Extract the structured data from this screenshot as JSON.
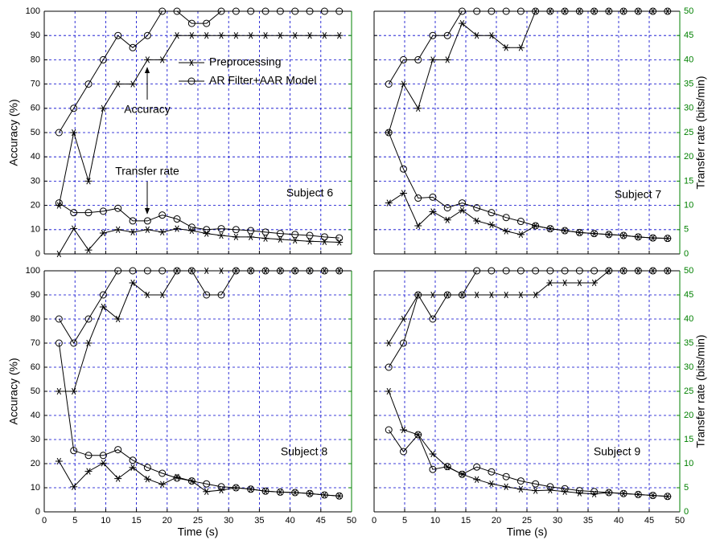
{
  "chart_data": [
    {
      "type": "line",
      "ylabel": "Accuracy (%)",
      "annotations": [
        "Accuracy",
        "Transfer rate",
        "Subject 6"
      ],
      "x": [
        2.4,
        4.8,
        7.2,
        9.6,
        12,
        14.4,
        16.8,
        19.2,
        21.6,
        24,
        26.4,
        28.8,
        31.2,
        33.6,
        36,
        38.4,
        40.8,
        43.2,
        45.6,
        48
      ],
      "xlim": [
        0,
        50
      ],
      "xticks": [
        0,
        5,
        10,
        15,
        20,
        25,
        30,
        35,
        40,
        45,
        50
      ],
      "xtick_labels": false,
      "ylim": [
        0,
        100
      ],
      "yticks": [
        0,
        10,
        20,
        30,
        40,
        50,
        60,
        70,
        80,
        90,
        100
      ],
      "ytick_labels": true,
      "y2lim": [
        0,
        50
      ],
      "y2ticks": [
        0,
        5,
        10,
        15,
        20,
        25,
        30,
        35,
        40,
        45,
        50
      ],
      "y2tick_labels": false,
      "grid": true,
      "grid_color": "#0000cc",
      "y2color": "#008000",
      "series": [
        {
          "name": "Preprocessing",
          "color": "#000000",
          "marker": "star",
          "values": [
            20,
            50,
            30,
            60,
            70,
            70,
            80,
            80,
            90,
            90,
            90,
            90,
            90,
            90,
            90,
            90,
            90,
            90,
            90,
            90
          ]
        },
        {
          "name": "AR Filter+AAR Model",
          "color": "#000000",
          "marker": "circle",
          "values": [
            50,
            60,
            70,
            80,
            90,
            85,
            90,
            100,
            100,
            95,
            95,
            100,
            100,
            100,
            100,
            100,
            100,
            100,
            100,
            100
          ]
        },
        {
          "color": "#000000",
          "marker": "star",
          "axis": "y2",
          "values": [
            0,
            5.2,
            0.8,
            4.3,
            5,
            4.5,
            5,
            4.5,
            5.2,
            4.8,
            4.2,
            3.8,
            3.5,
            3.5,
            3.2,
            3,
            2.8,
            2.6,
            2.5,
            2.4
          ]
        },
        {
          "color": "#000000",
          "marker": "circle",
          "axis": "y2",
          "values": [
            10.5,
            8.5,
            8.5,
            8.8,
            9.4,
            6.8,
            6.8,
            8,
            7.2,
            5.5,
            5,
            5.2,
            5,
            4.8,
            4.5,
            4.2,
            4,
            3.8,
            3.5,
            3.3
          ]
        }
      ]
    },
    {
      "type": "line",
      "y2label": "Transfer rate (bits/min)",
      "annotations": [
        "Subject 7"
      ],
      "x": [
        2.4,
        4.8,
        7.2,
        9.6,
        12,
        14.4,
        16.8,
        19.2,
        21.6,
        24,
        26.4,
        28.8,
        31.2,
        33.6,
        36,
        38.4,
        40.8,
        43.2,
        45.6,
        48
      ],
      "xlim": [
        0,
        50
      ],
      "xticks": [
        0,
        5,
        10,
        15,
        20,
        25,
        30,
        35,
        40,
        45,
        50
      ],
      "xtick_labels": false,
      "ylim": [
        0,
        100
      ],
      "yticks": [
        0,
        10,
        20,
        30,
        40,
        50,
        60,
        70,
        80,
        90,
        100
      ],
      "ytick_labels": false,
      "y2lim": [
        0,
        50
      ],
      "y2ticks": [
        0,
        5,
        10,
        15,
        20,
        25,
        30,
        35,
        40,
        45,
        50
      ],
      "y2tick_labels": true,
      "grid": true,
      "grid_color": "#0000cc",
      "y2color": "#008000",
      "series": [
        {
          "color": "#000000",
          "marker": "star",
          "values": [
            50,
            70,
            60,
            80,
            80,
            95,
            90,
            90,
            85,
            85,
            100,
            100,
            100,
            100,
            100,
            100,
            100,
            100,
            100,
            100
          ]
        },
        {
          "color": "#000000",
          "marker": "circle",
          "values": [
            70,
            80,
            80,
            90,
            90,
            100,
            100,
            100,
            100,
            100,
            100,
            100,
            100,
            100,
            100,
            100,
            100,
            100,
            100,
            100
          ]
        },
        {
          "color": "#000000",
          "marker": "star",
          "axis": "y2",
          "values": [
            10.5,
            12.5,
            5.8,
            8.7,
            7,
            9,
            6.8,
            6,
            4.7,
            4,
            5.8,
            5.2,
            4.8,
            4.4,
            4.2,
            4,
            3.8,
            3.5,
            3.3,
            3.2
          ]
        },
        {
          "color": "#000000",
          "marker": "circle",
          "axis": "y2",
          "values": [
            25,
            17.5,
            11.5,
            11.7,
            9.5,
            10.5,
            9.5,
            8.5,
            7.5,
            6.7,
            5.8,
            5.2,
            4.8,
            4.4,
            4.2,
            4,
            3.8,
            3.5,
            3.3,
            3.2
          ]
        }
      ]
    },
    {
      "type": "line",
      "ylabel": "Accuracy (%)",
      "xlabel": "Time (s)",
      "annotations": [
        "Subject 8"
      ],
      "x": [
        2.4,
        4.8,
        7.2,
        9.6,
        12,
        14.4,
        16.8,
        19.2,
        21.6,
        24,
        26.4,
        28.8,
        31.2,
        33.6,
        36,
        38.4,
        40.8,
        43.2,
        45.6,
        48
      ],
      "xlim": [
        0,
        50
      ],
      "xticks": [
        0,
        5,
        10,
        15,
        20,
        25,
        30,
        35,
        40,
        45,
        50
      ],
      "xtick_labels": true,
      "ylim": [
        0,
        100
      ],
      "yticks": [
        0,
        10,
        20,
        30,
        40,
        50,
        60,
        70,
        80,
        90,
        100
      ],
      "ytick_labels": true,
      "y2lim": [
        0,
        50
      ],
      "y2ticks": [
        0,
        5,
        10,
        15,
        20,
        25,
        30,
        35,
        40,
        45,
        50
      ],
      "y2tick_labels": false,
      "grid": true,
      "grid_color": "#0000cc",
      "y2color": "#008000",
      "series": [
        {
          "color": "#000000",
          "marker": "star",
          "values": [
            50,
            50,
            70,
            85,
            80,
            95,
            90,
            90,
            100,
            100,
            100,
            100,
            100,
            100,
            100,
            100,
            100,
            100,
            100,
            100
          ]
        },
        {
          "color": "#000000",
          "marker": "circle",
          "values": [
            80,
            70,
            80,
            90,
            100,
            100,
            100,
            100,
            100,
            100,
            90,
            90,
            100,
            100,
            100,
            100,
            100,
            100,
            100,
            100
          ]
        },
        {
          "color": "#000000",
          "marker": "star",
          "axis": "y2",
          "values": [
            10.5,
            5.2,
            8.4,
            10.1,
            6.9,
            9.2,
            6.8,
            5.7,
            7.2,
            6.4,
            4.2,
            4.5,
            5,
            4.7,
            4.3,
            4.1,
            4,
            3.8,
            3.5,
            3.3
          ]
        },
        {
          "color": "#000000",
          "marker": "circle",
          "axis": "y2",
          "values": [
            35,
            12.7,
            11.7,
            11.7,
            12.9,
            10.7,
            9.2,
            8,
            7,
            6.4,
            5.8,
            5.2,
            5,
            4.7,
            4.3,
            4.1,
            4,
            3.8,
            3.5,
            3.3
          ]
        }
      ]
    },
    {
      "type": "line",
      "y2label": "Transfer rate (bits/min)",
      "xlabel": "Time (s)",
      "annotations": [
        "Subject 9"
      ],
      "x": [
        2.4,
        4.8,
        7.2,
        9.6,
        12,
        14.4,
        16.8,
        19.2,
        21.6,
        24,
        26.4,
        28.8,
        31.2,
        33.6,
        36,
        38.4,
        40.8,
        43.2,
        45.6,
        48
      ],
      "xlim": [
        0,
        50
      ],
      "xticks": [
        0,
        5,
        10,
        15,
        20,
        25,
        30,
        35,
        40,
        45,
        50
      ],
      "xtick_labels": true,
      "ylim": [
        0,
        100
      ],
      "yticks": [
        0,
        10,
        20,
        30,
        40,
        50,
        60,
        70,
        80,
        90,
        100
      ],
      "ytick_labels": false,
      "y2lim": [
        0,
        50
      ],
      "y2ticks": [
        0,
        5,
        10,
        15,
        20,
        25,
        30,
        35,
        40,
        45,
        50
      ],
      "y2tick_labels": true,
      "grid": true,
      "grid_color": "#0000cc",
      "y2color": "#008000",
      "series": [
        {
          "color": "#000000",
          "marker": "star",
          "values": [
            70,
            80,
            90,
            90,
            90,
            90,
            90,
            90,
            90,
            90,
            90,
            95,
            95,
            95,
            95,
            100,
            100,
            100,
            100,
            100
          ]
        },
        {
          "color": "#000000",
          "marker": "circle",
          "values": [
            60,
            70,
            90,
            80,
            90,
            90,
            100,
            100,
            100,
            100,
            100,
            100,
            100,
            100,
            100,
            100,
            100,
            100,
            100,
            100
          ]
        },
        {
          "color": "#000000",
          "marker": "star",
          "axis": "y2",
          "values": [
            25,
            17,
            16,
            12,
            9.3,
            7.8,
            6.7,
            5.8,
            5.2,
            4.7,
            4.4,
            4.5,
            4.2,
            3.9,
            3.7,
            4,
            3.8,
            3.6,
            3.4,
            3.2
          ]
        },
        {
          "color": "#000000",
          "marker": "circle",
          "axis": "y2",
          "values": [
            17,
            12.5,
            16,
            8.8,
            9.4,
            7.8,
            9.3,
            8.3,
            7.3,
            6.4,
            5.8,
            5.2,
            4.8,
            4.4,
            4.2,
            4,
            3.8,
            3.6,
            3.4,
            3.2
          ]
        }
      ]
    }
  ]
}
